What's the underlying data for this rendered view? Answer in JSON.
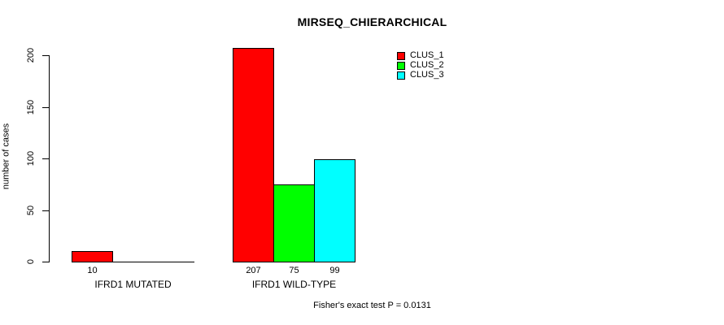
{
  "chart_data": {
    "type": "bar",
    "title": "MIRSEQ_CHIERARCHICAL",
    "ylabel": "number of cases",
    "xlabel": "",
    "categories": [
      "IFRD1 MUTATED",
      "IFRD1 WILD-TYPE"
    ],
    "series": [
      {
        "name": "CLUS_1",
        "color": "#ff0000",
        "values": [
          10,
          207
        ]
      },
      {
        "name": "CLUS_2",
        "color": "#00ff00",
        "values": [
          0,
          75
        ]
      },
      {
        "name": "CLUS_3",
        "color": "#00ffff",
        "values": [
          0,
          99
        ]
      }
    ],
    "bar_value_labels": [
      [
        "10",
        "",
        ""
      ],
      [
        "207",
        "75",
        "99"
      ]
    ],
    "ylim": [
      0,
      200
    ],
    "yticks": [
      "0",
      "50",
      "100",
      "150",
      "200"
    ],
    "grid": false,
    "legend_position": "top-right",
    "legend_entries": [
      "CLUS_1",
      "CLUS_2",
      "CLUS_3"
    ],
    "annotation": "Fisher's exact test P = 0.0131",
    "colors": {
      "background": "#ffffff",
      "axis": "#000000",
      "text": "#000000"
    }
  }
}
